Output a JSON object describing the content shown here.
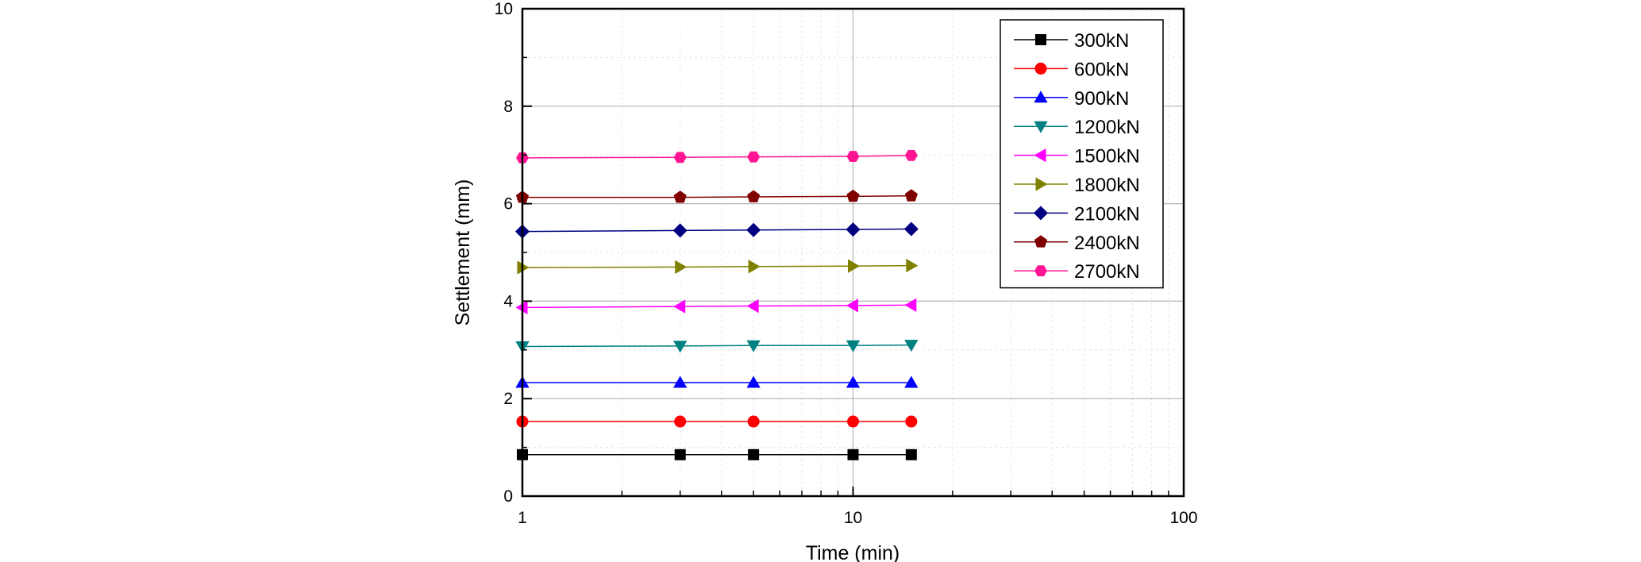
{
  "chart_data": {
    "type": "line",
    "xscale": "log",
    "xlabel": "Time (min)",
    "ylabel": "Settlement (mm)",
    "xlim": [
      1,
      100
    ],
    "ylim": [
      0,
      10
    ],
    "x_major_ticks": [
      1,
      10,
      100
    ],
    "x_tick_labels": [
      "1",
      "10",
      "100"
    ],
    "y_ticks": [
      0,
      2,
      4,
      6,
      8,
      10
    ],
    "y_tick_labels": [
      "0",
      "2",
      "4",
      "6",
      "8",
      "10"
    ],
    "grid": true,
    "legend_position": "top-right",
    "x": [
      1,
      3,
      5,
      10,
      15
    ],
    "series": [
      {
        "name": "300kN",
        "color": "#000000",
        "marker": "square",
        "values": [
          0.85,
          0.85,
          0.85,
          0.85,
          0.85
        ]
      },
      {
        "name": "600kN",
        "color": "#ff0000",
        "marker": "circle",
        "values": [
          1.53,
          1.53,
          1.53,
          1.53,
          1.53
        ]
      },
      {
        "name": "900kN",
        "color": "#0000ff",
        "marker": "triangle-up",
        "values": [
          2.33,
          2.33,
          2.33,
          2.33,
          2.33
        ]
      },
      {
        "name": "1200kN",
        "color": "#008080",
        "marker": "triangle-down",
        "values": [
          3.07,
          3.08,
          3.09,
          3.09,
          3.1
        ]
      },
      {
        "name": "1500kN",
        "color": "#ff00ff",
        "marker": "triangle-left",
        "values": [
          3.87,
          3.89,
          3.9,
          3.91,
          3.92
        ]
      },
      {
        "name": "1800kN",
        "color": "#808000",
        "marker": "triangle-right",
        "values": [
          4.69,
          4.7,
          4.71,
          4.72,
          4.73
        ]
      },
      {
        "name": "2100kN",
        "color": "#000080",
        "marker": "diamond",
        "values": [
          5.43,
          5.45,
          5.46,
          5.47,
          5.48
        ]
      },
      {
        "name": "2400kN",
        "color": "#800000",
        "marker": "pentagon",
        "values": [
          6.13,
          6.13,
          6.14,
          6.15,
          6.16
        ]
      },
      {
        "name": "2700kN",
        "color": "#ff1493",
        "marker": "hexagon",
        "values": [
          6.94,
          6.95,
          6.96,
          6.97,
          6.99
        ]
      }
    ]
  }
}
